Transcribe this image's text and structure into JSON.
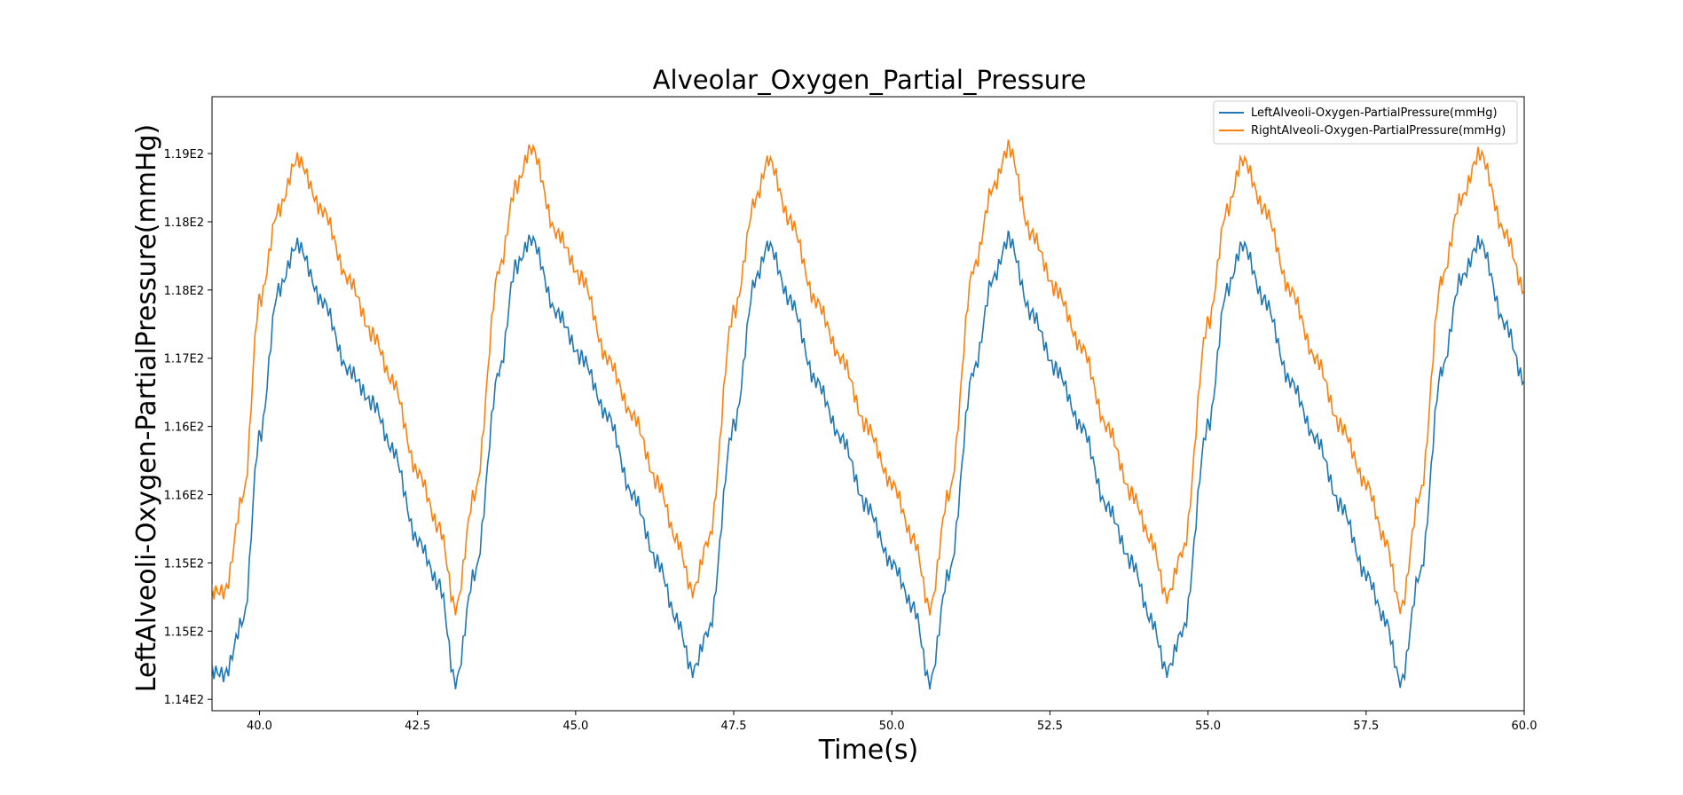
{
  "chart_data": {
    "type": "line",
    "title": "Alveolar_Oxygen_Partial_Pressure",
    "xlabel": "Time(s)",
    "ylabel": "LeftAlveoli-Oxygen-PartialPressure(mmHg)",
    "xlim": [
      39.25,
      60.0
    ],
    "ylim": [
      114.4,
      119.8
    ],
    "x_ticks": [
      40.0,
      42.5,
      45.0,
      47.5,
      50.0,
      52.5,
      55.0,
      57.5,
      60.0
    ],
    "x_tick_labels": [
      "40.0",
      "42.5",
      "45.0",
      "47.5",
      "50.0",
      "52.5",
      "55.0",
      "57.5",
      "60.0"
    ],
    "y_ticks": [
      114.5,
      115.1,
      115.7,
      116.3,
      116.9,
      117.5,
      118.1,
      118.7,
      119.3
    ],
    "y_tick_labels": [
      "1.14E2",
      "1.15E2",
      "1.15E2",
      "1.16E2",
      "1.16E2",
      "1.17E2",
      "1.18E2",
      "1.18E2",
      "1.19E2"
    ],
    "grid": false,
    "legend_position": "top-right",
    "series": [
      {
        "name": "LeftAlveoli-Oxygen-PartialPressure(mmHg)",
        "color": "#1f77b4",
        "x": [
          39.25,
          39.45,
          39.75,
          40.0,
          40.3,
          40.6,
          41.0,
          41.4,
          41.8,
          42.1,
          42.5,
          42.85,
          43.1,
          43.4,
          43.8,
          44.05,
          44.3,
          44.7,
          45.1,
          45.5,
          45.9,
          46.3,
          46.6,
          46.85,
          47.1,
          47.5,
          47.85,
          48.05,
          48.4,
          48.8,
          49.2,
          49.6,
          50.0,
          50.35,
          50.6,
          50.9,
          51.3,
          51.6,
          51.85,
          52.2,
          52.6,
          53.0,
          53.4,
          53.8,
          54.1,
          54.35,
          54.6,
          55.0,
          55.3,
          55.55,
          55.9,
          56.3,
          56.7,
          57.1,
          57.5,
          57.8,
          58.05,
          58.35,
          58.7,
          59.0,
          59.3,
          59.7,
          60.0
        ],
        "y": [
          114.75,
          114.72,
          115.2,
          116.8,
          118.1,
          118.5,
          118.0,
          117.4,
          117.1,
          116.7,
          115.9,
          115.5,
          114.65,
          115.6,
          117.4,
          118.3,
          118.55,
          117.9,
          117.5,
          117.0,
          116.3,
          115.7,
          115.2,
          114.75,
          115.1,
          116.9,
          118.2,
          118.5,
          118.0,
          117.3,
          116.8,
          116.2,
          115.7,
          115.3,
          114.65,
          115.6,
          117.4,
          118.2,
          118.55,
          117.9,
          117.4,
          116.9,
          116.2,
          115.7,
          115.2,
          114.75,
          115.1,
          116.9,
          118.1,
          118.5,
          118.0,
          117.3,
          116.8,
          116.2,
          115.6,
          115.2,
          114.65,
          115.6,
          117.4,
          118.2,
          118.52,
          117.8,
          117.3
        ]
      },
      {
        "name": "RightAlveoli-Oxygen-PartialPressure(mmHg)",
        "color": "#ff7f0e",
        "x": [
          39.25,
          39.45,
          39.75,
          40.0,
          40.3,
          40.6,
          41.0,
          41.4,
          41.8,
          42.1,
          42.5,
          42.85,
          43.1,
          43.4,
          43.8,
          44.05,
          44.3,
          44.7,
          45.1,
          45.5,
          45.9,
          46.3,
          46.6,
          46.85,
          47.1,
          47.5,
          47.85,
          48.05,
          48.4,
          48.8,
          49.2,
          49.6,
          50.0,
          50.35,
          50.6,
          50.9,
          51.3,
          51.6,
          51.85,
          52.2,
          52.6,
          53.0,
          53.4,
          53.8,
          54.1,
          54.35,
          54.6,
          55.0,
          55.3,
          55.55,
          55.9,
          56.3,
          56.7,
          57.1,
          57.5,
          57.8,
          58.05,
          58.35,
          58.7,
          59.0,
          59.3,
          59.7,
          60.0
        ],
        "y": [
          115.45,
          115.45,
          116.3,
          118.0,
          118.8,
          119.25,
          118.8,
          118.2,
          117.7,
          117.3,
          116.5,
          116.0,
          115.3,
          116.3,
          118.3,
          119.0,
          119.35,
          118.6,
          118.2,
          117.5,
          117.0,
          116.4,
          115.9,
          115.45,
          115.9,
          117.9,
          118.9,
          119.25,
          118.7,
          118.0,
          117.5,
          116.9,
          116.4,
          115.9,
          115.3,
          116.3,
          118.3,
          119.0,
          119.35,
          118.6,
          118.1,
          117.6,
          116.9,
          116.3,
          115.9,
          115.4,
          115.8,
          117.8,
          118.8,
          119.25,
          118.8,
          118.1,
          117.5,
          116.9,
          116.4,
          115.9,
          115.3,
          116.3,
          118.2,
          118.9,
          119.3,
          118.6,
          118.1
        ]
      }
    ]
  }
}
